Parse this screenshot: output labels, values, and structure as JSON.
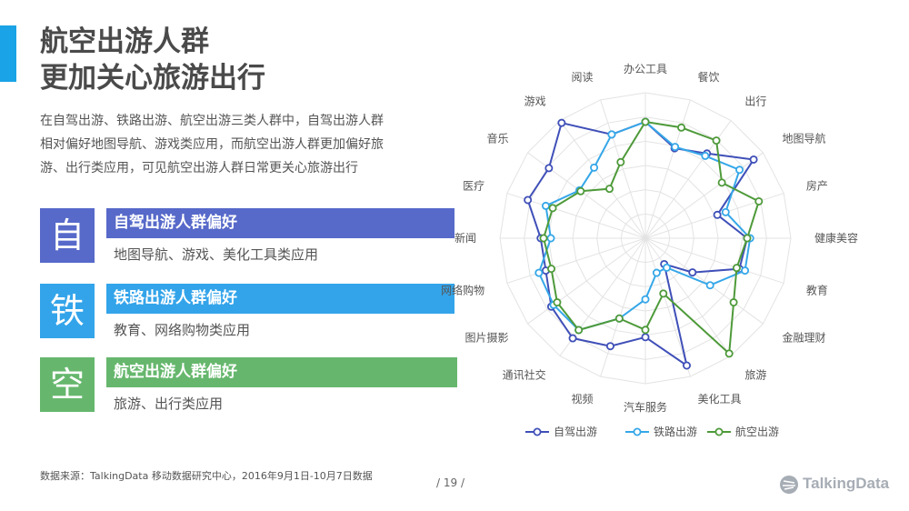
{
  "header": {
    "title_line1": "航空出游人群",
    "title_line2": "更加关心旅游出行",
    "accent_color": "#1aa3e6"
  },
  "intro": {
    "line1": "在自驾出游、铁路出游、航空出游三类人群中，自驾出游人群",
    "line2": "相对偏好地图导航、游戏类应用，而航空出游人群更加偏好旅",
    "line3": "游、出行类应用，可见航空出游人群日常更关心旅游出行"
  },
  "categories": [
    {
      "char": "自",
      "title": "自驾出游人群偏好",
      "desc": "地图导航、游戏、美化工具类应用",
      "color": "#5769c9"
    },
    {
      "char": "铁",
      "title": "铁路出游人群偏好",
      "desc": "教育、网络购物类应用",
      "color": "#33a4ea"
    },
    {
      "char": "空",
      "title": "航空出游人群偏好",
      "desc": "旅游、出行类应用",
      "color": "#66b76d"
    }
  ],
  "footer": {
    "source": "数据来源：TalkingData 移动数据研究中心，2016年9月1日-10月7日数据",
    "page": "/ 19 /",
    "logo": "TalkingData"
  },
  "chart_data": {
    "type": "radar",
    "axes": [
      "办公工具",
      "餐饮",
      "出行",
      "地图导航",
      "房产",
      "健康美容",
      "教育",
      "金融理财",
      "旅游",
      "美化工具",
      "汽车服务",
      "视频",
      "通讯社交",
      "图片摄影",
      "网络购物",
      "新闻",
      "医疗",
      "音乐",
      "游戏",
      "阅读"
    ],
    "range": [
      0,
      1
    ],
    "rings": 6,
    "grid": true,
    "legend_position": "bottom",
    "series": [
      {
        "name": "自驾出游",
        "color": "#3f4fb8",
        "values": [
          0.8,
          0.65,
          0.72,
          0.92,
          0.52,
          0.7,
          0.68,
          0.4,
          0.22,
          0.92,
          0.68,
          0.78,
          0.85,
          0.8,
          0.72,
          0.72,
          0.85,
          0.82,
          0.98,
          0.75
        ]
      },
      {
        "name": "铁路出游",
        "color": "#35a7e8",
        "values": [
          0.8,
          0.66,
          0.7,
          0.8,
          0.58,
          0.72,
          0.72,
          0.55,
          0.25,
          0.25,
          0.42,
          0.58,
          0.78,
          0.78,
          0.77,
          0.65,
          0.72,
          0.56,
          0.6,
          0.75
        ]
      },
      {
        "name": "航空出游",
        "color": "#4e9a3a",
        "values": [
          0.8,
          0.8,
          0.83,
          0.65,
          0.82,
          0.7,
          0.66,
          0.75,
          0.98,
          0.4,
          0.63,
          0.58,
          0.78,
          0.75,
          0.68,
          0.7,
          0.67,
          0.55,
          0.42,
          0.55
        ]
      }
    ]
  }
}
